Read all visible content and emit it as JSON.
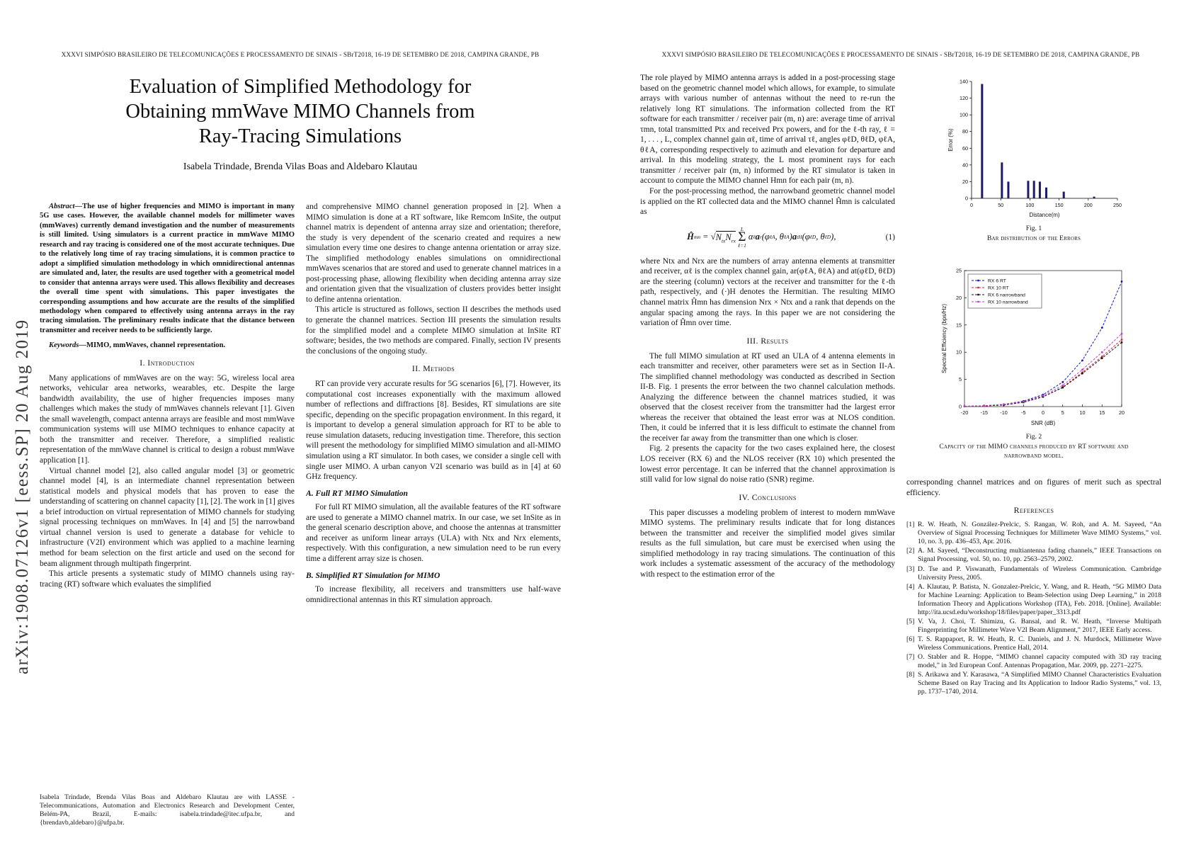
{
  "meta": {
    "running_head": "XXXVI SIMPÓSIO BRASILEIRO DE TELECOMUNICAÇÕES E PROCESSAMENTO DE SINAIS - SBrT2018, 16-19 DE SETEMBRO DE 2018, CAMPINA GRANDE, PB"
  },
  "arxiv": {
    "label": "arXiv:1908.07126v1  [eess.SP]  20 Aug 2019"
  },
  "title_lines": [
    "Evaluation of Simplified Methodology for",
    "Obtaining mmWave MIMO Channels from",
    "Ray-Tracing Simulations"
  ],
  "authors": "Isabela Trindade, Brenda Vilas Boas and Aldebaro Klautau",
  "abstract": {
    "label": "Abstract—",
    "text": "The use of higher frequencies and MIMO is important in many 5G use cases. However, the available channel models for millimeter waves (mmWaves) currently demand investigation and the number of measurements is still limited. Using simulators is a current practice in mmWave MIMO research and ray tracing is considered one of the most accurate techniques. Due to the relatively long time of ray tracing simulations, it is common practice to adopt a simplified simulation methodology in which omnidirectional antennas are simulated and, later, the results are used together with a geometrical model to consider that antenna arrays were used. This allows flexibility and decreases the overall time spent with simulations. This paper investigates the corresponding assumptions and how accurate are the results of the simplified methodology when compared to effectively using antenna arrays in the ray tracing simulation. The preliminary results indicate that the distance between transmitter and receiver needs to be sufficiently large."
  },
  "keywords": {
    "label": "Keywords—",
    "text": "MIMO, mmWaves, channel representation."
  },
  "intro": {
    "heading": "I. Introduction",
    "p1": "Many applications of mmWaves are on the way: 5G, wireless local area networks, vehicular area networks, wearables, etc. Despite the large bandwidth availability, the use of higher frequencies imposes many challenges which makes the study of mmWaves channels relevant [1]. Given the small wavelength, compact antenna arrays are feasible and most mmWave communication systems will use MIMO techniques to enhance capacity at both the transmitter and receiver. Therefore, a simplified realistic representation of the mmWave channel is critical to design a robust mmWave application [1].",
    "p2": "Virtual channel model [2], also called angular model [3] or geometric channel model [4], is an intermediate channel representation between statistical models and physical models that has proven to ease the understanding of scattering on channel capacity [1], [2]. The work in [1] gives a brief introduction on virtual representation of MIMO channels for studying signal processing techniques on mmWaves. In [4] and [5] the narrowband virtual channel version is used to generate a database for vehicle to infrastructure (V2I) environment which was applied to a machine learning method for beam selection on the first article and used on the second for beam alignment through multipath fingerprint.",
    "p3": "This article presents a systematic study of MIMO channels using ray-tracing (RT) software which evaluates the simplified"
  },
  "footnote": "Isabela Trindade, Brenda Vilas Boas and Aldebaro Klautau are with LASSE - Telecommunications, Automation and Electronics Research and Development Center, Belém-PA, Brazil, E-mails: isabela.trindade@itec.ufpa.br, and {brendavb,aldebaro}@ufpa.br.",
  "page1col2": {
    "p1": "and comprehensive MIMO channel generation proposed in [2]. When a MIMO simulation is done at a RT software, like Remcom InSite, the output channel matrix is dependent of antenna array size and orientation; therefore, the study is very dependent of the scenario created and requires a new simulation every time one desires to change antenna orientation or array size. The simplified methodology enables simulations on omnidirectional mmWaves scenarios that are stored and used to generate channel matrices in a post-processing phase, allowing flexibility when deciding antenna array size and orientation given that the visualization of clusters provides better insight to define antenna orientation.",
    "p2": "This article is structured as follows, section II describes the methods used to generate the channel matrices. Section III presents the simulation results for the simplified model and a complete MIMO simulation at InSite RT software; besides, the two methods are compared. Finally, section IV presents the conclusions of the ongoing study."
  },
  "methods": {
    "heading": "II. Methods",
    "p1": "RT can provide very accurate results for 5G scenarios [6], [7]. However, its computational cost increases exponentially with the maximum allowed number of reflections and diffractions [8]. Besides, RT simulations are site specific, depending on the specific propagation environment. In this regard, it is important to develop a general simulation approach for RT to be able to reuse simulation datasets, reducing investigation time. Therefore, this section will present the methodology for simplified MIMO simulation and all-MIMO simulation using a RT simulator. In both cases, we consider a single cell with single user MIMO. A urban canyon V2I scenario was build as in [4] at 60 GHz frequency.",
    "subA": "A. Full RT MIMO Simulation",
    "pA": "For full RT MIMO simulation, all the available features of the RT software are used to generate a MIMO channel matrix. In our case, we set InSite as in the general scenario description above, and choose the antennas at transmitter and receiver as uniform linear arrays (ULA) with Ntx and Nrx elements, respectively. With this configuration, a new simulation need to be run every time a different array size is chosen.",
    "subB": "B. Simplified RT Simulation for MIMO",
    "pB": "To increase flexibility, all receivers and transmitters use half-wave omnidirectional antennas in this RT simulation approach."
  },
  "postproc": {
    "p1": "The role played by MIMO antenna arrays is added in a post-processing stage based on the geometric channel model which allows, for example, to simulate arrays with various number of antennas without the need to re-run the relatively long RT simulations. The information collected from the RT software for each transmitter / receiver pair (m, n) are: average time of arrival τmn, total transmitted Ptx and received Prx powers, and for the ℓ-th ray, ℓ = 1, . . . , L, complex channel gain αℓ, time of arrival τℓ, angles φℓD, θℓD, φℓA, θℓA, corresponding respectively to azimuth and elevation for departure and arrival. In this modeling strategy, the L most prominent rays for each transmitter / receiver pair (m, n) informed by the RT simulator is taken in account to compute the MIMO channel Hmn for each pair (m, n).",
    "p2": "For the post-processing method, the narrowband geometric channel model is applied on the RT collected data and the MIMO channel Ĥmn is calculated as",
    "p3": "where Ntx and Nrx are the numbers of array antenna elements at transmitter and receiver, αℓ is the complex channel gain, ar(φℓA, θℓA) and at(φℓD, θℓD) are the steering (column) vectors at the receiver and transmitter for the ℓ-th path, respectively, and (·)H denotes the Hermitian. The resulting MIMO channel matrix Ĥmn has dimension Nrx × Ntx and a rank that depends on the angular spacing among the rays. In this paper we are not considering the variation of Ĥmn over time."
  },
  "equation": {
    "number": "(1)",
    "tokens": [
      {
        "t": "Ĥ",
        "b": 1
      },
      {
        "s": "mn"
      },
      {
        "t": " = "
      },
      {
        "t": "√"
      },
      {
        "rad": [
          {
            "t": "N"
          },
          {
            "s": "tx"
          },
          {
            "t": "N"
          },
          {
            "s": "rx"
          }
        ]
      },
      {
        "sum": {
          "top": "L",
          "bot": "ℓ=1"
        }
      },
      {
        "t": "α"
      },
      {
        "s": "ℓ"
      },
      {
        "t": "a",
        "b": 1
      },
      {
        "s": "r"
      },
      {
        "t": "(φ"
      },
      {
        "s": "ℓ"
      },
      {
        "p": "A"
      },
      {
        "t": ", θ"
      },
      {
        "s": "ℓ"
      },
      {
        "p": "A"
      },
      {
        "t": ")"
      },
      {
        "t": "a",
        "b": 1
      },
      {
        "s": "t"
      },
      {
        "p": "H"
      },
      {
        "t": "(φ"
      },
      {
        "s": "ℓ"
      },
      {
        "p": "D"
      },
      {
        "t": ", θ"
      },
      {
        "s": "ℓ"
      },
      {
        "p": "D"
      },
      {
        "t": "),"
      }
    ]
  },
  "results": {
    "heading": "III. Results",
    "p1": "The full MIMO simulation at RT used an ULA of 4 antenna elements in each transmitter and receiver, other parameters were set as in Section II-A. The simplified channel methodology was conducted as described in Section II-B. Fig. 1 presents the error between the two channel calculation methods. Analyzing the difference between the channel matrices studied, it was observed that the closest receiver from the transmitter had the largest error whereas the receiver that obtained the least error was at NLOS condition. Then, it could be inferred that it is less difficult to estimate the channel from the receiver far away from the transmitter than one which is closer.",
    "p2": "Fig. 2 presents the capacity for the two cases explained here, the closest LOS receiver (RX 6) and the NLOS receiver (RX 10) which presented the lowest error percentage. It can be inferred that the channel approximation is still valid for low signal do noise ratio (SNR) regime."
  },
  "conclusions": {
    "heading": "IV. Conclusions",
    "p1": "This paper discusses a modeling problem of interest to modern mmWave MIMO systems. The preliminary results indicate that for long distances between the transmitter and receiver the simplified model gives similar results as the full simulation, but care must be exercised when using the simplified methodology in ray tracing simulations. The continuation of this work includes a systematic assessment of the accuracy of the methodology with respect to the estimation error of the"
  },
  "continuation_p": "corresponding channel matrices and on figures of merit such as spectral efficiency.",
  "fig1": {
    "label": "Fig. 1",
    "caption": "Bar distribution of the Errors"
  },
  "fig2": {
    "label": "Fig. 2",
    "caption": "Capacity of the MIMO channels produced by RT software and narrowband model."
  },
  "references": {
    "heading": "References",
    "items": [
      {
        "num": "[1]",
        "text": "R. W. Heath, N. González-Prelcic, S. Rangan, W. Roh, and A. M. Sayeed, “An Overview of Signal Processing Techniques for Millimeter Wave MIMO Systems,” vol. 10, no. 3, pp. 436–453, Apr. 2016."
      },
      {
        "num": "[2]",
        "text": "A. M. Sayeed, “Deconstructing multiantenna fading channels,” IEEE Transactions on Signal Processing, vol. 50, no. 10, pp. 2563–2579, 2002."
      },
      {
        "num": "[3]",
        "text": "D. Tse and P. Viswanath, Fundamentals of Wireless Communication. Cambridge University Press, 2005."
      },
      {
        "num": "[4]",
        "text": "A. Klautau, P. Batista, N. Gonzalez-Prelcic, Y. Wang, and R. Heath, “5G MIMO Data for Machine Learning: Application to Beam-Selection using Deep Learning,” in 2018 Information Theory and Applications Workshop (ITA), Feb. 2018. [Online]. Available: http://ita.ucsd.edu/workshop/18/files/paper/paper_3313.pdf"
      },
      {
        "num": "[5]",
        "text": "V. Va, J. Choi, T. Shimizu, G. Bansal, and R. W. Heath, “Inverse Multipath Fingerprinting for Millimeter Wave V2I Beam Alignment,” 2017, IEEE Early access."
      },
      {
        "num": "[6]",
        "text": "T. S. Rappaport, R. W. Heath, R. C. Daniels, and J. N. Murdock, Millimeter Wave Wireless Communications.  Prentice Hall, 2014."
      },
      {
        "num": "[7]",
        "text": "O. Stabler and R. Hoppe, “MIMO channel capacity computed with 3D ray tracing model,” in 3rd European Conf. Antennas Propagation, Mar. 2009, pp. 2271–2275."
      },
      {
        "num": "[8]",
        "text": "S. Arikawa and Y. Karasawa, “A Simplified MIMO Channel Characteristics Evaluation Scheme Based on Ray Tracing and Its Application to Indoor Radio Systems,” vol. 13, pp. 1737–1740, 2014."
      }
    ]
  },
  "chart_data": [
    {
      "id": "fig1",
      "type": "bar",
      "title": "",
      "xlabel": "Distance(m)",
      "ylabel": "Error (%)",
      "xlim": [
        0,
        250
      ],
      "ylim": [
        0,
        140
      ],
      "xticks": [
        0,
        50,
        100,
        150,
        200,
        250
      ],
      "yticks": [
        0,
        20,
        40,
        60,
        80,
        100,
        120,
        140
      ],
      "grid": false,
      "bar_color": "#1b1b6e",
      "bars": [
        {
          "x": 18,
          "value": 137
        },
        {
          "x": 52,
          "value": 43
        },
        {
          "x": 63,
          "value": 20
        },
        {
          "x": 97,
          "value": 21
        },
        {
          "x": 107,
          "value": 21
        },
        {
          "x": 117,
          "value": 20
        },
        {
          "x": 128,
          "value": 13
        },
        {
          "x": 158,
          "value": 8
        },
        {
          "x": 210,
          "value": 2
        }
      ]
    },
    {
      "id": "fig2",
      "type": "line",
      "title": "",
      "xlabel": "SNR (dB)",
      "ylabel": "Spectral Efficiency (bps/Hz)",
      "xlim": [
        -20,
        20
      ],
      "ylim": [
        0,
        25
      ],
      "xticks": [
        -20,
        -15,
        -10,
        -5,
        0,
        5,
        10,
        15,
        20
      ],
      "yticks": [
        0,
        5,
        10,
        15,
        20,
        25
      ],
      "grid": false,
      "legend_position": "top-left",
      "x": [
        -20,
        -15,
        -10,
        -5,
        0,
        5,
        10,
        15,
        20
      ],
      "series": [
        {
          "name": "RX 6 RT",
          "color": "#1414c8",
          "values": [
            0.05,
            0.15,
            0.4,
            1.0,
            2.2,
            4.5,
            8.5,
            14.5,
            23.0
          ]
        },
        {
          "name": "RX 10 RT",
          "color": "#d42a2a",
          "values": [
            0.05,
            0.12,
            0.3,
            0.8,
            1.8,
            3.6,
            6.3,
            9.2,
            12.3
          ]
        },
        {
          "name": "RX 6 narrowband",
          "color": "#111111",
          "values": [
            0.05,
            0.12,
            0.3,
            0.8,
            1.8,
            3.5,
            6.1,
            8.9,
            11.8
          ]
        },
        {
          "name": "RX 10 narrowband",
          "color": "#c43fc4",
          "values": [
            0.06,
            0.15,
            0.4,
            0.9,
            2.0,
            3.9,
            6.8,
            10.0,
            13.4
          ]
        }
      ]
    }
  ]
}
